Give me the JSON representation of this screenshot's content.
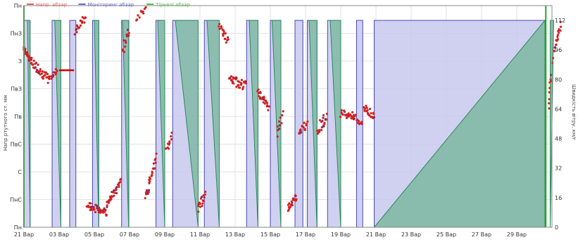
{
  "chart_data": {
    "type": "scatter",
    "title": "",
    "legend": {
      "placement": "top-left",
      "items": [
        {
          "name": "Напр. абзар",
          "color": "#e06060"
        },
        {
          "name": "Моніторинг абзар",
          "color": "#6666cc"
        },
        {
          "name": "Тіркелі абзар",
          "color": "#55bb55"
        }
      ]
    },
    "x_ticks": [
      "21 Вар",
      "03 Вар",
      "05 Вар",
      "07 Вар",
      "09 Вар",
      "11 Вар",
      "13 Вар",
      "15 Вар",
      "17 Вар",
      "19 Вар",
      "21 Вар",
      "23 Вар",
      "25 Вар",
      "27 Вар",
      "29 Вар"
    ],
    "x_range": [
      0,
      30
    ],
    "y_left_label": "Напр ртутного ст. мм",
    "y_left_ticks": [
      "Пн",
      "ПнС",
      "С",
      "ПвС",
      "Пв",
      "ПвЗ",
      "З",
      "ПнЗ",
      "Пн"
    ],
    "y_left_range": [
      0,
      360
    ],
    "y_right_label": "Швидкість вітру, км/г",
    "y_right_ticks": [
      "0",
      "16",
      "32",
      "48",
      "64",
      "80",
      "96",
      "112"
    ],
    "y_right_range": [
      0,
      120
    ],
    "grid": true,
    "colors": {
      "points": "#d42020",
      "points_alt": "#8a2a5a",
      "area_blue": "#c8c8ee",
      "area_blue_edge": "#4a4ab0",
      "area_green": "#7cb8a0",
      "area_green_edge": "#2a8a5a",
      "marker": "#22aa22",
      "ref_line": "#cc0000"
    },
    "windows": [
      {
        "start": 0.0,
        "end": 0.35,
        "wind_start": 112,
        "wind_end": 112
      },
      {
        "start": 1.6,
        "end": 2.1,
        "wind_start": 112,
        "wind_end": 112
      },
      {
        "start": 2.6,
        "end": 2.95,
        "wind_start": 112,
        "wind_end": 112
      },
      {
        "start": 3.9,
        "end": 4.25,
        "wind_start": 112,
        "wind_end": 112
      },
      {
        "start": 5.55,
        "end": 5.95,
        "wind_start": 112,
        "wind_end": 112
      },
      {
        "start": 7.5,
        "end": 8.0,
        "wind_start": 112,
        "wind_end": 112
      },
      {
        "start": 8.45,
        "end": 9.9,
        "wind_start": 112,
        "wind_end": 112
      },
      {
        "start": 10.25,
        "end": 11.1,
        "wind_start": 112,
        "wind_end": 112
      },
      {
        "start": 12.65,
        "end": 13.3,
        "wind_start": 112,
        "wind_end": 112
      },
      {
        "start": 14.0,
        "end": 14.6,
        "wind_start": 112,
        "wind_end": 112
      },
      {
        "start": 15.4,
        "end": 15.85,
        "wind_start": 112,
        "wind_end": 112
      },
      {
        "start": 16.1,
        "end": 16.65,
        "wind_start": 112,
        "wind_end": 112
      },
      {
        "start": 17.25,
        "end": 18.0,
        "wind_start": 112,
        "wind_end": 112
      },
      {
        "start": 18.9,
        "end": 19.25,
        "wind_start": 112,
        "wind_end": 112
      },
      {
        "start": 19.9,
        "end": 29.6,
        "wind_start": 0,
        "wind_end": 112
      }
    ],
    "ramps": [
      {
        "x0": 0.35,
        "x1": 0.2,
        "y0": 0,
        "y1": 112
      },
      {
        "x0": 2.1,
        "x1": 1.75,
        "y0": 0,
        "y1": 112
      },
      {
        "x0": 4.25,
        "x1": 4.0,
        "y0": 0,
        "y1": 112
      },
      {
        "x0": 5.95,
        "x1": 5.6,
        "y0": 0,
        "y1": 112
      },
      {
        "x0": 8.0,
        "x1": 7.6,
        "y0": 0,
        "y1": 112
      },
      {
        "x0": 9.9,
        "x1": 8.6,
        "y0": 0,
        "y1": 112
      },
      {
        "x0": 11.1,
        "x1": 10.4,
        "y0": 0,
        "y1": 112
      },
      {
        "x0": 13.3,
        "x1": 12.8,
        "y0": 0,
        "y1": 112
      },
      {
        "x0": 14.6,
        "x1": 14.1,
        "y0": 0,
        "y1": 112
      },
      {
        "x0": 16.65,
        "x1": 16.2,
        "y0": 0,
        "y1": 112
      },
      {
        "x0": 18.0,
        "x1": 17.4,
        "y0": 0,
        "y1": 112
      },
      {
        "x0": 29.9,
        "x1": 30.1,
        "y0": 0,
        "y1": 112
      }
    ],
    "marker_lines": [
      0.0,
      29.65
    ],
    "ref_segment": {
      "x0": 2.0,
      "x1": 2.85,
      "y": 255
    },
    "point_clusters": [
      {
        "x0": 0.0,
        "x1": 0.4,
        "y0": 290,
        "y1": 270,
        "spread": 12,
        "n": 26
      },
      {
        "x0": 0.4,
        "x1": 1.4,
        "y0": 270,
        "y1": 240,
        "spread": 15,
        "n": 36
      },
      {
        "x0": 1.4,
        "x1": 1.9,
        "y0": 240,
        "y1": 255,
        "spread": 10,
        "n": 14
      },
      {
        "x0": 2.9,
        "x1": 3.5,
        "y0": 320,
        "y1": 340,
        "spread": 14,
        "n": 18
      },
      {
        "x0": 3.6,
        "x1": 4.7,
        "y0": 35,
        "y1": 25,
        "spread": 12,
        "n": 42
      },
      {
        "x0": 4.7,
        "x1": 5.5,
        "y0": 35,
        "y1": 75,
        "spread": 12,
        "n": 30
      },
      {
        "x0": 5.6,
        "x1": 6.0,
        "y0": 290,
        "y1": 320,
        "spread": 20,
        "n": 14
      },
      {
        "x0": 6.4,
        "x1": 6.9,
        "y0": 340,
        "y1": 355,
        "spread": 10,
        "n": 10
      },
      {
        "x0": 6.9,
        "x1": 7.5,
        "y0": 45,
        "y1": 115,
        "spread": 15,
        "n": 28
      },
      {
        "x0": 8.1,
        "x1": 8.4,
        "y0": 125,
        "y1": 150,
        "spread": 12,
        "n": 10
      },
      {
        "x0": 9.9,
        "x1": 10.3,
        "y0": 30,
        "y1": 55,
        "spread": 15,
        "n": 16
      },
      {
        "x0": 11.1,
        "x1": 11.6,
        "y0": 330,
        "y1": 300,
        "spread": 15,
        "n": 18
      },
      {
        "x0": 11.7,
        "x1": 12.6,
        "y0": 240,
        "y1": 230,
        "spread": 15,
        "n": 34
      },
      {
        "x0": 13.3,
        "x1": 13.9,
        "y0": 220,
        "y1": 195,
        "spread": 12,
        "n": 26
      },
      {
        "x0": 14.4,
        "x1": 14.7,
        "y0": 155,
        "y1": 180,
        "spread": 18,
        "n": 10
      },
      {
        "x0": 15.0,
        "x1": 15.5,
        "y0": 30,
        "y1": 50,
        "spread": 12,
        "n": 24
      },
      {
        "x0": 15.6,
        "x1": 16.1,
        "y0": 150,
        "y1": 170,
        "spread": 15,
        "n": 18
      },
      {
        "x0": 16.7,
        "x1": 17.2,
        "y0": 160,
        "y1": 180,
        "spread": 20,
        "n": 20
      },
      {
        "x0": 18.0,
        "x1": 18.8,
        "y0": 185,
        "y1": 180,
        "spread": 12,
        "n": 26
      },
      {
        "x0": 18.8,
        "x1": 19.2,
        "y0": 180,
        "y1": 165,
        "spread": 10,
        "n": 10
      },
      {
        "x0": 19.3,
        "x1": 19.9,
        "y0": 195,
        "y1": 180,
        "spread": 12,
        "n": 22
      },
      {
        "x0": 29.8,
        "x1": 30.0,
        "y0": 200,
        "y1": 260,
        "spread": 15,
        "n": 10
      },
      {
        "x0": 30.1,
        "x1": 30.5,
        "y0": 280,
        "y1": 330,
        "spread": 12,
        "n": 20
      }
    ]
  }
}
